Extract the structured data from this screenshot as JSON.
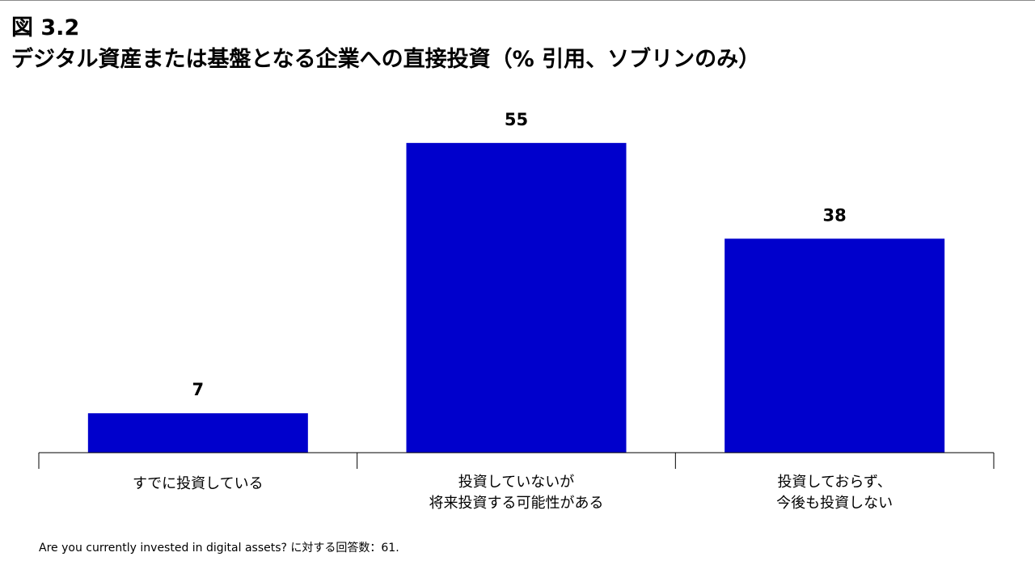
{
  "header": {
    "figure_label": "図 3.2",
    "title": "デジタル資産または基盤となる企業への直接投資（% 引用、ソブリンのみ）"
  },
  "chart_data": {
    "type": "bar",
    "categories": [
      [
        "すでに投資している"
      ],
      [
        "投資していないが",
        "将来投資する可能性がある"
      ],
      [
        "投資しておらず、",
        "今後も投資しない"
      ]
    ],
    "values": [
      7,
      55,
      38
    ],
    "data_labels": [
      "7",
      "55",
      "38"
    ],
    "ylim": [
      0,
      60
    ],
    "bar_color": "#0000CC",
    "grid": false,
    "legend": "none"
  },
  "footnote": "Are you currently invested in digital assets? に対する回答数：61."
}
